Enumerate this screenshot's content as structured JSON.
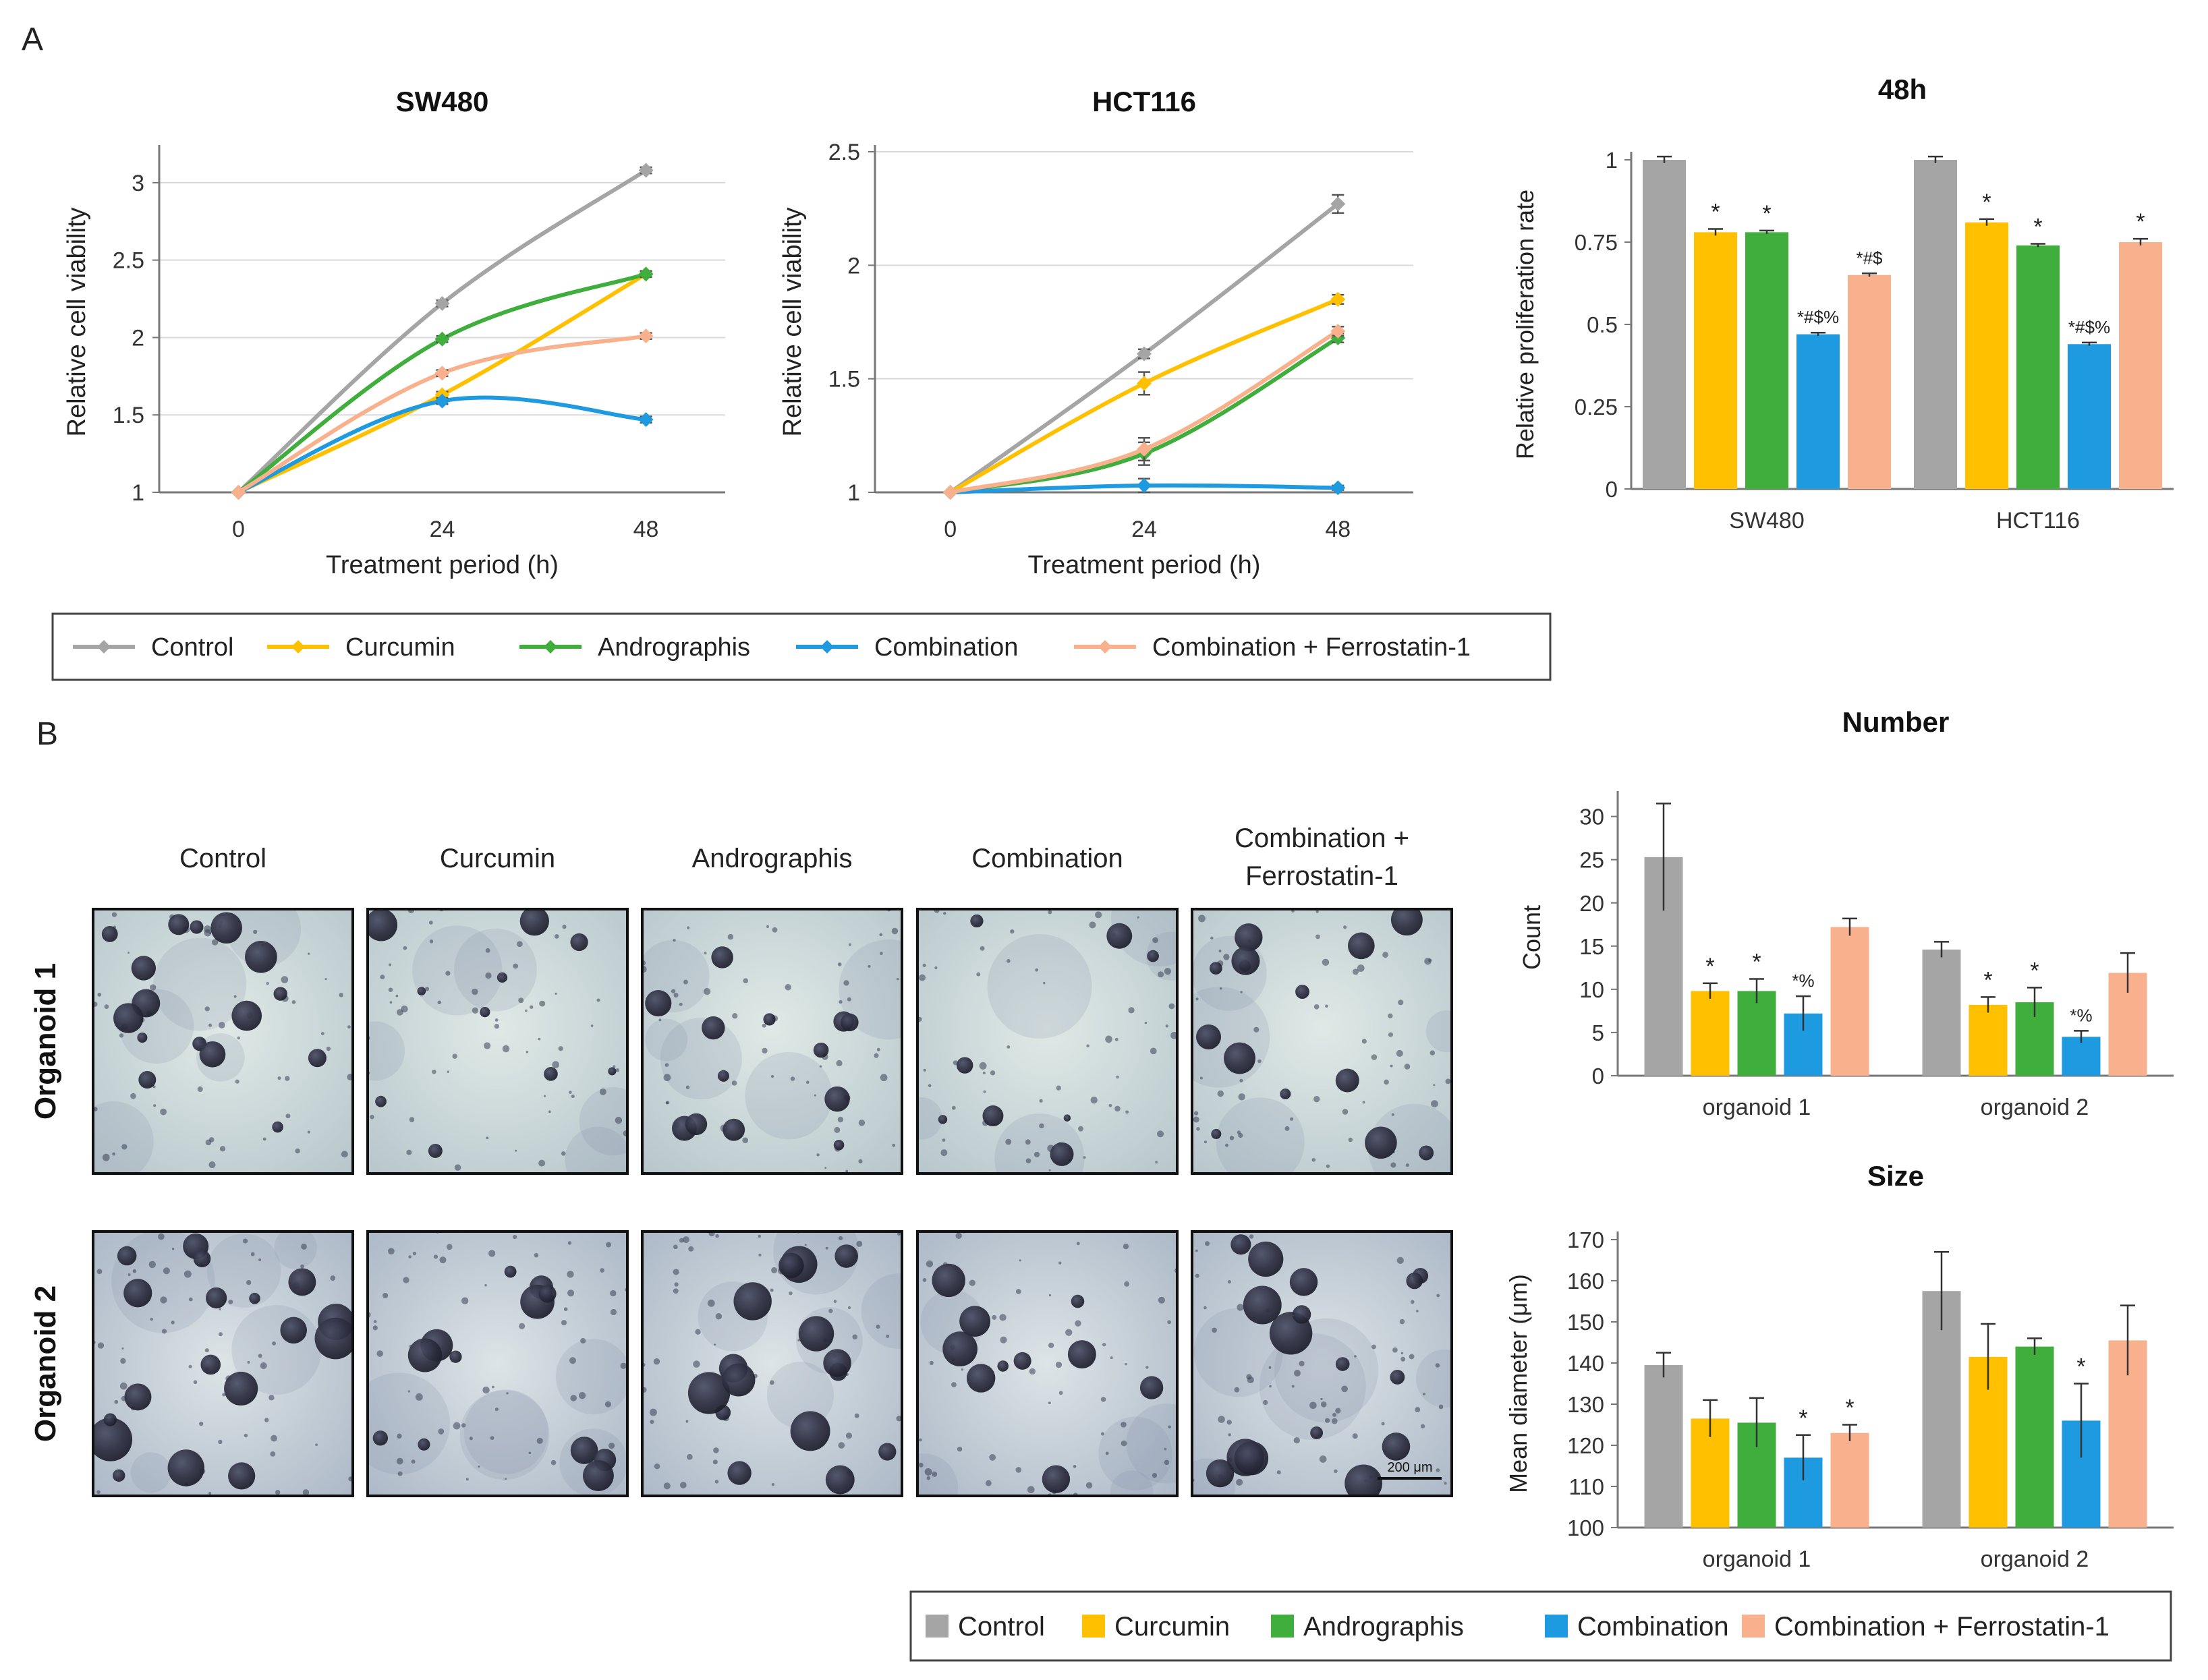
{
  "panels": {
    "a": "A",
    "b": "B"
  },
  "colors": {
    "Control": "#a5a5a5",
    "Curcumin": "#ffc000",
    "Andrographis": "#3fae3d",
    "Combination": "#1e9be0",
    "Combination + Ferrostatin-1": "#f9b08c"
  },
  "chart_data": [
    {
      "id": "sw480",
      "type": "line",
      "title": "SW480",
      "xlabel": "Treatment period (h)",
      "ylabel": "Relative cell viability",
      "x": [
        0,
        24,
        48
      ],
      "xticks": [
        "0",
        "24",
        "48"
      ],
      "ylim": [
        1,
        3.2
      ],
      "yticks": [
        1,
        1.5,
        2,
        2.5,
        3
      ],
      "ytick_labels": [
        "1",
        "1.5",
        "2",
        "2.5",
        "3"
      ],
      "series": [
        {
          "name": "Control",
          "values": [
            1,
            2.22,
            3.08
          ],
          "err": [
            0,
            0.02,
            0.02
          ]
        },
        {
          "name": "Curcumin",
          "values": [
            1,
            1.63,
            2.41
          ],
          "err": [
            0,
            0.02,
            0.02
          ]
        },
        {
          "name": "Andrographis",
          "values": [
            1,
            1.99,
            2.41
          ],
          "err": [
            0,
            0.02,
            0.02
          ]
        },
        {
          "name": "Combination",
          "values": [
            1,
            1.59,
            1.47
          ],
          "err": [
            0,
            0.02,
            0.02
          ]
        },
        {
          "name": "Combination + Ferrostatin-1",
          "values": [
            1,
            1.77,
            2.01
          ],
          "err": [
            0,
            0.02,
            0.02
          ]
        }
      ]
    },
    {
      "id": "hct116",
      "type": "line",
      "title": "HCT116",
      "xlabel": "Treatment period (h)",
      "ylabel": "Relative cell viability",
      "x": [
        0,
        24,
        48
      ],
      "xticks": [
        "0",
        "24",
        "48"
      ],
      "ylim": [
        1,
        2.5
      ],
      "yticks": [
        1,
        1.5,
        2,
        2.5
      ],
      "ytick_labels": [
        "1",
        "1.5",
        "2",
        "2.5"
      ],
      "series": [
        {
          "name": "Control",
          "values": [
            1,
            1.61,
            2.27
          ],
          "err": [
            0,
            0.02,
            0.04
          ]
        },
        {
          "name": "Curcumin",
          "values": [
            1,
            1.48,
            1.85
          ],
          "err": [
            0,
            0.05,
            0.02
          ]
        },
        {
          "name": "Andrographis",
          "values": [
            1,
            1.17,
            1.68
          ],
          "err": [
            0,
            0.05,
            0.02
          ]
        },
        {
          "name": "Combination",
          "values": [
            1,
            1.03,
            1.02
          ],
          "err": [
            0,
            0.03,
            0.01
          ]
        },
        {
          "name": "Combination + Ferrostatin-1",
          "values": [
            1,
            1.19,
            1.71
          ],
          "err": [
            0,
            0.05,
            0.02
          ]
        }
      ]
    },
    {
      "id": "h48",
      "type": "bar",
      "title": "48h",
      "xlabel": "",
      "ylabel": "Relative proliferation rate",
      "categories": [
        "SW480",
        "HCT116"
      ],
      "ylim": [
        0,
        1
      ],
      "yticks": [
        0,
        0.25,
        0.5,
        0.75,
        1
      ],
      "ytick_labels": [
        "0",
        "0.25",
        "0.5",
        "0.75",
        "1"
      ],
      "series": [
        {
          "name": "Control",
          "values": [
            1.0,
            1.0
          ],
          "err": [
            0.01,
            0.01
          ],
          "marks": [
            "",
            ""
          ]
        },
        {
          "name": "Curcumin",
          "values": [
            0.78,
            0.81
          ],
          "err": [
            0.01,
            0.01
          ],
          "marks": [
            "*",
            "*"
          ]
        },
        {
          "name": "Andrographis",
          "values": [
            0.78,
            0.74
          ],
          "err": [
            0.005,
            0.005
          ],
          "marks": [
            "*",
            "*"
          ]
        },
        {
          "name": "Combination",
          "values": [
            0.47,
            0.44
          ],
          "err": [
            0.005,
            0.005
          ],
          "marks": [
            "*#$%",
            "*#$%"
          ]
        },
        {
          "name": "Combination + Ferrostatin-1",
          "values": [
            0.65,
            0.75
          ],
          "err": [
            0.005,
            0.01
          ],
          "marks": [
            "*#$",
            "*"
          ]
        }
      ]
    },
    {
      "id": "number",
      "type": "bar",
      "title": "Number",
      "xlabel": "",
      "ylabel": "Count",
      "categories": [
        "organoid 1",
        "organoid 2"
      ],
      "ylim": [
        0,
        32
      ],
      "yticks": [
        0,
        5,
        10,
        15,
        20,
        25,
        30
      ],
      "ytick_labels": [
        "0",
        "5",
        "10",
        "15",
        "20",
        "25",
        "30"
      ],
      "series": [
        {
          "name": "Control",
          "values": [
            25.3,
            14.6
          ],
          "err": [
            6.2,
            0.9
          ],
          "marks": [
            "",
            ""
          ]
        },
        {
          "name": "Curcumin",
          "values": [
            9.8,
            8.2
          ],
          "err": [
            0.9,
            0.9
          ],
          "marks": [
            "*",
            "*"
          ]
        },
        {
          "name": "Andrographis",
          "values": [
            9.8,
            8.5
          ],
          "err": [
            1.4,
            1.7
          ],
          "marks": [
            "*",
            "*"
          ]
        },
        {
          "name": "Combination",
          "values": [
            7.2,
            4.5
          ],
          "err": [
            2.0,
            0.7
          ],
          "marks": [
            "*%",
            "*%"
          ]
        },
        {
          "name": "Combination + Ferrostatin-1",
          "values": [
            17.2,
            11.9
          ],
          "err": [
            1.0,
            2.3
          ],
          "marks": [
            "",
            ""
          ]
        }
      ]
    },
    {
      "id": "size",
      "type": "bar",
      "title": "Size",
      "xlabel": "",
      "ylabel": "Mean diameter (μm)",
      "categories": [
        "organoid 1",
        "organoid 2"
      ],
      "ylim": [
        100,
        170
      ],
      "yticks": [
        100,
        110,
        120,
        130,
        140,
        150,
        160,
        170
      ],
      "ytick_labels": [
        "100",
        "110",
        "120",
        "130",
        "140",
        "150",
        "160",
        "170"
      ],
      "series": [
        {
          "name": "Control",
          "values": [
            139.5,
            157.5
          ],
          "err": [
            3.0,
            9.5
          ],
          "marks": [
            "",
            ""
          ]
        },
        {
          "name": "Curcumin",
          "values": [
            126.5,
            141.5
          ],
          "err": [
            4.5,
            8.0
          ],
          "marks": [
            "",
            ""
          ]
        },
        {
          "name": "Andrographis",
          "values": [
            125.5,
            144.0
          ],
          "err": [
            6.0,
            2.0
          ],
          "marks": [
            "",
            ""
          ]
        },
        {
          "name": "Combination",
          "values": [
            117.0,
            126.0
          ],
          "err": [
            5.5,
            9.0
          ],
          "marks": [
            "*",
            "*"
          ]
        },
        {
          "name": "Combination + Ferrostatin-1",
          "values": [
            123.0,
            145.5
          ],
          "err": [
            2.0,
            8.5
          ],
          "marks": [
            "*",
            ""
          ]
        }
      ]
    }
  ],
  "legend_a": {
    "line_items": [
      "Control",
      "Curcumin",
      "Andrographis",
      "Combination",
      "Combination + Ferrostatin-1"
    ]
  },
  "legend_b": {
    "bar_items": [
      "Control",
      "Curcumin",
      "Andrographis",
      "Combination",
      "Combination + Ferrostatin-1"
    ]
  },
  "micrographs": {
    "columns": [
      "Control",
      "Curcumin",
      "Andrographis",
      "Combination",
      "Combination + Ferrostatin-1"
    ],
    "rows": [
      "Organoid 1",
      "Organoid 2"
    ],
    "scale_bar": "200 μm"
  }
}
